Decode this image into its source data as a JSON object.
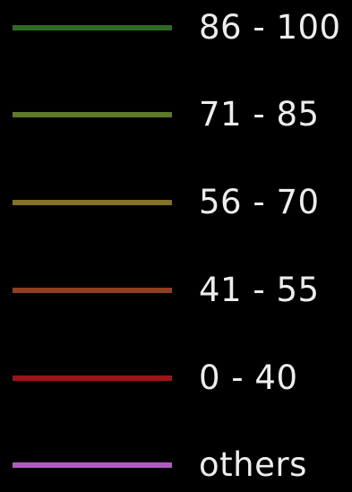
{
  "legend": {
    "items": [
      {
        "label": "86 - 100",
        "color": "#2f6a24"
      },
      {
        "label": "71 - 85",
        "color": "#5c7a2a"
      },
      {
        "label": "56 - 70",
        "color": "#857028"
      },
      {
        "label": "41 - 55",
        "color": "#8e3f1f"
      },
      {
        "label": "0 - 40",
        "color": "#9a1518"
      },
      {
        "label": "others",
        "color": "#b45ac4"
      }
    ]
  }
}
